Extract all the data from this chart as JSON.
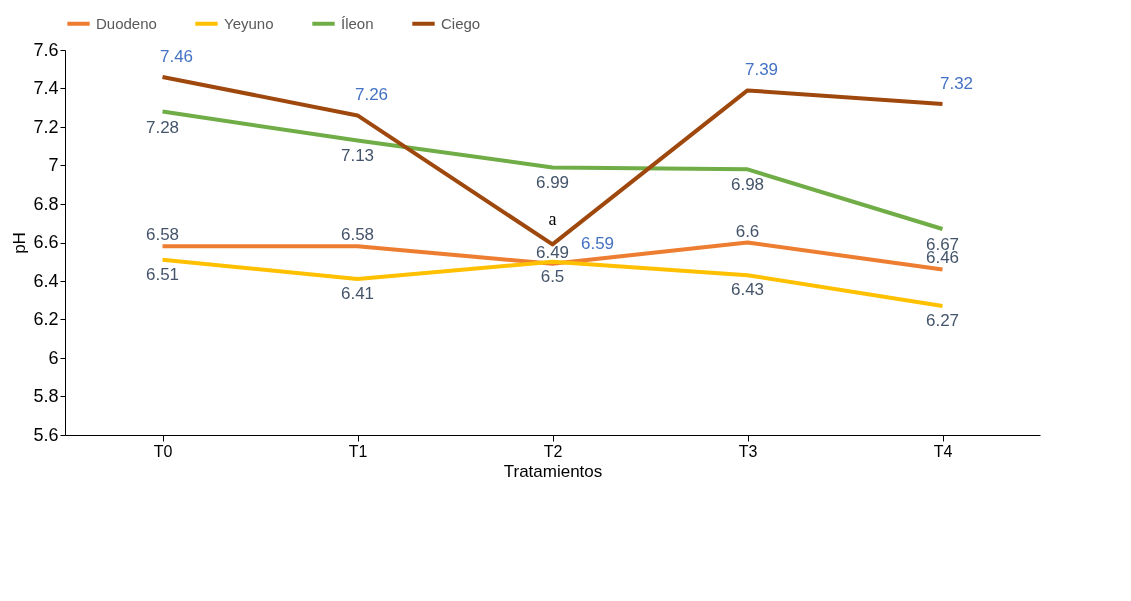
{
  "chart_data": {
    "type": "line",
    "xlabel": "Tratamientos",
    "ylabel": "pH",
    "categories": [
      "T0",
      "T1",
      "T2",
      "T3",
      "T4"
    ],
    "series": [
      {
        "name": "Duodeno",
        "color": "#ed7d31",
        "values": [
          6.58,
          6.58,
          6.49,
          6.6,
          6.46
        ]
      },
      {
        "name": "Yeyuno",
        "color": "#ffc000",
        "values": [
          6.51,
          6.41,
          6.5,
          6.43,
          6.27
        ]
      },
      {
        "name": "Íleon",
        "color": "#70ad47",
        "values": [
          7.28,
          7.13,
          6.99,
          6.98,
          6.67
        ]
      },
      {
        "name": "Ciego",
        "color": "#9e480e",
        "values": [
          7.46,
          7.26,
          6.59,
          7.39,
          7.32
        ]
      }
    ],
    "ylim": [
      5.6,
      7.6
    ],
    "yticks": [
      5.6,
      5.8,
      6,
      6.2,
      6.4,
      6.6,
      6.8,
      7,
      7.2,
      7.4,
      7.6
    ],
    "grid": false,
    "legend": "top",
    "marker": "none",
    "line_style": "solid",
    "data_labels": true,
    "annotations": [
      {
        "text": "a",
        "x": "T2",
        "y": 6.59
      }
    ]
  }
}
